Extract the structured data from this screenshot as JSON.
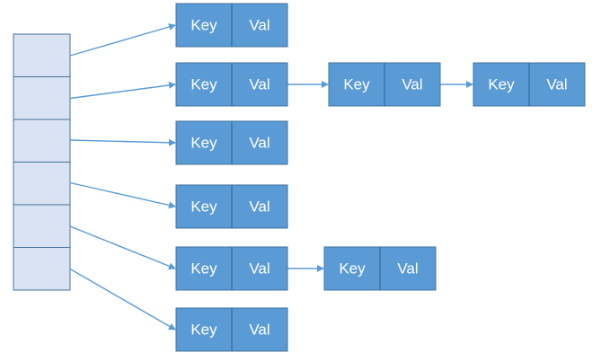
{
  "diagram": {
    "bucket_count": 6,
    "node_key_label": "Key",
    "node_val_label": "Val",
    "chains": [
      {
        "bucket": 0,
        "nodes": 1
      },
      {
        "bucket": 1,
        "nodes": 3
      },
      {
        "bucket": 2,
        "nodes": 1
      },
      {
        "bucket": 3,
        "nodes": 1
      },
      {
        "bucket": 4,
        "nodes": 2
      },
      {
        "bucket": 5,
        "nodes": 1
      }
    ],
    "colors": {
      "bucket_fill": "#dae3f3",
      "bucket_stroke": "#41719c",
      "node_fill": "#5b9bd5",
      "node_stroke": "#41719c",
      "arrow": "#5b9bd5",
      "text": "#ffffff"
    }
  }
}
